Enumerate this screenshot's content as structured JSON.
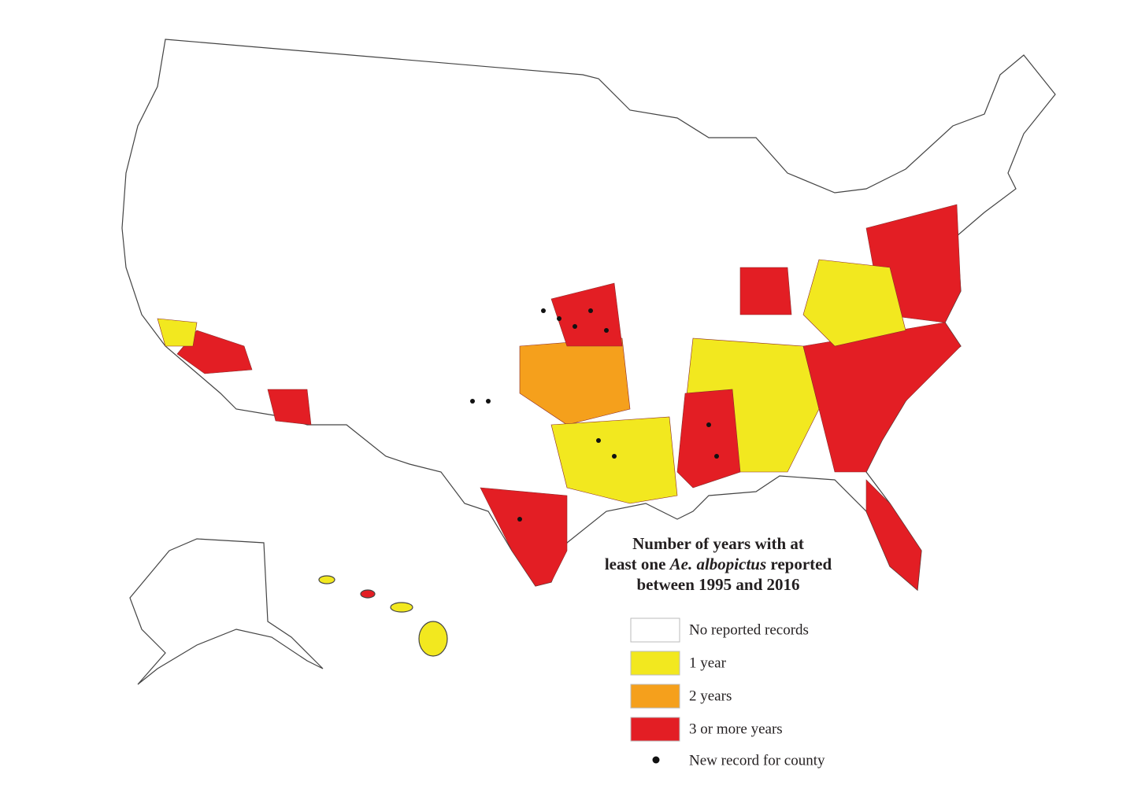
{
  "title": {
    "line1": "Number of years with at",
    "line2_start": "least one",
    "line2_italic": "Ae. albopictus",
    "line2_end": "reported",
    "line3": "between 1995 and 2016"
  },
  "legend": {
    "items": [
      {
        "label": "No reported records",
        "color": "#ffffff"
      },
      {
        "label": "1 year",
        "color": "#f2e81f"
      },
      {
        "label": "2 years",
        "color": "#f5a01c"
      },
      {
        "label": "3 or more years",
        "color": "#e31e24"
      }
    ],
    "dot_label": "New record for county"
  }
}
